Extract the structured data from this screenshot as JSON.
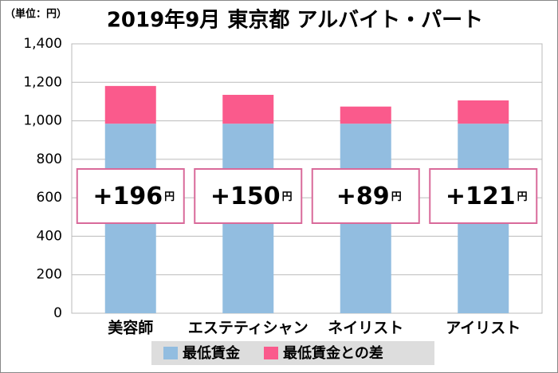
{
  "chart_data": {
    "type": "bar",
    "stacked": true,
    "title": "2019年9月 東京都 アルバイト・パート",
    "y_axis_label": "（単位：円）",
    "categories": [
      "美容師",
      "エステティシャン",
      "ネイリスト",
      "アイリスト"
    ],
    "series": [
      {
        "name": "最低賃金",
        "color": "#92bde0",
        "values": [
          985,
          985,
          985,
          985
        ]
      },
      {
        "name": "最低賃金との差",
        "color": "#fa5a8c",
        "values": [
          196,
          150,
          89,
          121
        ],
        "value_labels": [
          "+196",
          "+150",
          "+89",
          "+121"
        ],
        "value_label_unit": "円"
      }
    ],
    "ylim": [
      0,
      1400
    ],
    "yticks": [
      0,
      200,
      400,
      600,
      800,
      {
        "value": 1000,
        "label": "1,000"
      },
      {
        "value": 1200,
        "label": "1,200"
      },
      {
        "value": 1400,
        "label": "1,400"
      }
    ],
    "grid": true
  }
}
